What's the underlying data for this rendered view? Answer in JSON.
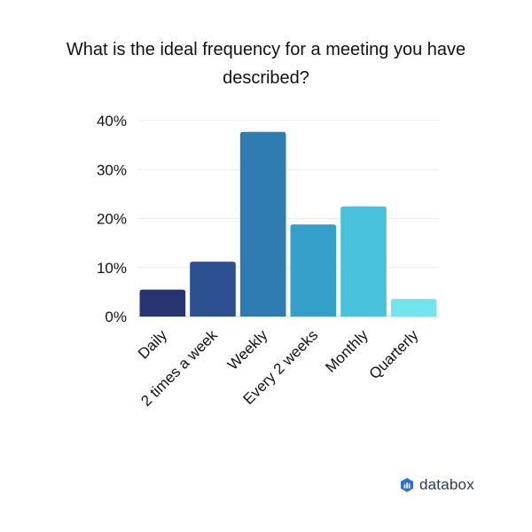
{
  "chart_data": {
    "type": "bar",
    "title": "What is the ideal frequency for a meeting you have described?",
    "categories": [
      "Daily",
      "2 times a week",
      "Weekly",
      "Every 2 weeks",
      "Monthly",
      "Quarterly"
    ],
    "values": [
      5.5,
      11.2,
      37.7,
      18.8,
      22.5,
      3.6
    ],
    "unit": "%",
    "ylim": [
      0,
      40
    ],
    "yticks": [
      "0%",
      "10%",
      "20%",
      "30%",
      "40%"
    ],
    "ytick_values": [
      0,
      10,
      20,
      30,
      40
    ],
    "colors": [
      "#283371",
      "#2d5090",
      "#2f7cb2",
      "#35a0c9",
      "#48c1dc",
      "#72e4ec"
    ],
    "grid": true,
    "legend": "none",
    "xlabel": "",
    "ylabel": ""
  },
  "brand": {
    "name": "databox",
    "icon": "databox-logo-icon"
  }
}
